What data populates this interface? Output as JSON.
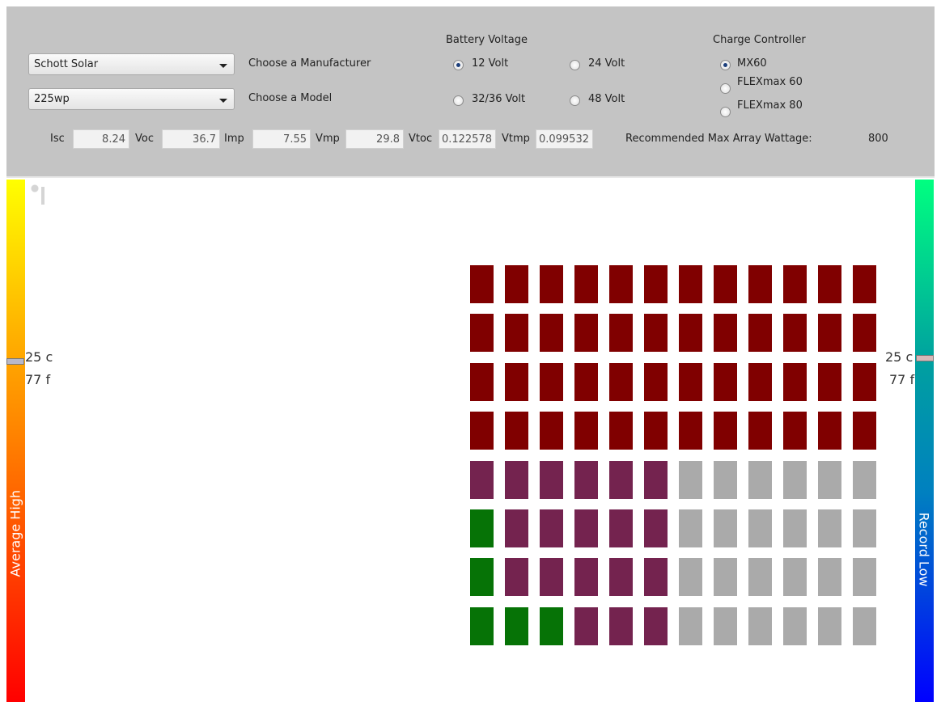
{
  "manufacturer": {
    "selected": "Schott Solar",
    "label": "Choose a Manufacturer"
  },
  "model": {
    "selected": "225wp",
    "label": "Choose a Model"
  },
  "battery_voltage": {
    "title": "Battery Voltage",
    "options": [
      {
        "label": "12 Volt",
        "checked": true
      },
      {
        "label": "24 Volt",
        "checked": false
      },
      {
        "label": "32/36 Volt",
        "checked": false
      },
      {
        "label": "48 Volt",
        "checked": false
      }
    ]
  },
  "charge_controller": {
    "title": "Charge Controller",
    "options": [
      {
        "label": "MX60",
        "checked": true
      },
      {
        "label": "FLEXmax 60",
        "checked": false
      },
      {
        "label": "FLEXmax 80",
        "checked": false
      }
    ]
  },
  "specs": [
    {
      "label": "Isc",
      "value": 8.24
    },
    {
      "label": "Voc",
      "value": 36.7
    },
    {
      "label": "Imp",
      "value": 7.55
    },
    {
      "label": "Vmp",
      "value": 29.8
    },
    {
      "label": "Vtoc",
      "value": 0.122578
    },
    {
      "label": "Vtmp",
      "value": 0.099532
    }
  ],
  "recommended": {
    "label": "Recommended Max Array Wattage:",
    "value": 800
  },
  "thermometers": [
    {
      "title": "Average High",
      "celsius": "25 c",
      "fahrenheit": "77 f"
    },
    {
      "title": "Record Low",
      "celsius": "25 c",
      "fahrenheit": "77 f"
    }
  ],
  "panel_grid": {
    "rows": [
      [
        "#800000",
        "#800000",
        "#800000",
        "#800000",
        "#800000",
        "#800000",
        "#800000",
        "#800000",
        "#800000",
        "#800000",
        "#800000",
        "#800000"
      ],
      [
        "#800000",
        "#800000",
        "#800000",
        "#800000",
        "#800000",
        "#800000",
        "#800000",
        "#800000",
        "#800000",
        "#800000",
        "#800000",
        "#800000"
      ],
      [
        "#800000",
        "#800000",
        "#800000",
        "#800000",
        "#800000",
        "#800000",
        "#800000",
        "#800000",
        "#800000",
        "#800000",
        "#800000",
        "#800000"
      ],
      [
        "#800000",
        "#800000",
        "#800000",
        "#800000",
        "#800000",
        "#800000",
        "#800000",
        "#800000",
        "#800000",
        "#800000",
        "#800000",
        "#800000"
      ],
      [
        "#74234f",
        "#74234f",
        "#74234f",
        "#74234f",
        "#74234f",
        "#74234f",
        "#aaaaaa",
        "#aaaaaa",
        "#aaaaaa",
        "#aaaaaa",
        "#aaaaaa",
        "#aaaaaa"
      ],
      [
        "#067306",
        "#74234f",
        "#74234f",
        "#74234f",
        "#74234f",
        "#74234f",
        "#aaaaaa",
        "#aaaaaa",
        "#aaaaaa",
        "#aaaaaa",
        "#aaaaaa",
        "#aaaaaa"
      ],
      [
        "#067306",
        "#74234f",
        "#74234f",
        "#74234f",
        "#74234f",
        "#74234f",
        "#aaaaaa",
        "#aaaaaa",
        "#aaaaaa",
        "#aaaaaa",
        "#aaaaaa",
        "#aaaaaa"
      ],
      [
        "#067306",
        "#067306",
        "#067306",
        "#74234f",
        "#74234f",
        "#74234f",
        "#aaaaaa",
        "#aaaaaa",
        "#aaaaaa",
        "#aaaaaa",
        "#aaaaaa",
        "#aaaaaa"
      ]
    ]
  }
}
